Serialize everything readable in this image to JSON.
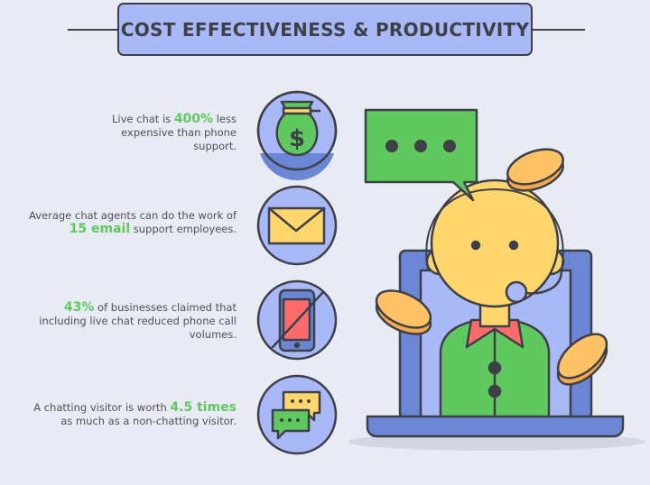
{
  "title": "COST EFFECTIVENESS & PRODUCTIVITY",
  "stats": [
    {
      "icon": "money-bag-icon",
      "pre": "Live chat is ",
      "highlight": "400%",
      "post": " less expensive than phone support."
    },
    {
      "icon": "envelope-icon",
      "pre": "Average chat agents can do the work of ",
      "highlight": "15 email",
      "post": " support employees."
    },
    {
      "icon": "no-phone-icon",
      "pre": "",
      "highlight": "43%",
      "post": " of businesses claimed that including live chat reduced phone call volumes."
    },
    {
      "icon": "chat-bubbles-icon",
      "pre": "A chatting visitor is worth ",
      "highlight": "4.5 times",
      "post": " as much as a non-chatting visitor."
    }
  ],
  "colors": {
    "background": "#e9ebf4",
    "accent_green": "#5fc85f",
    "banner": "#a9b8f7",
    "outline": "#3d4047"
  }
}
